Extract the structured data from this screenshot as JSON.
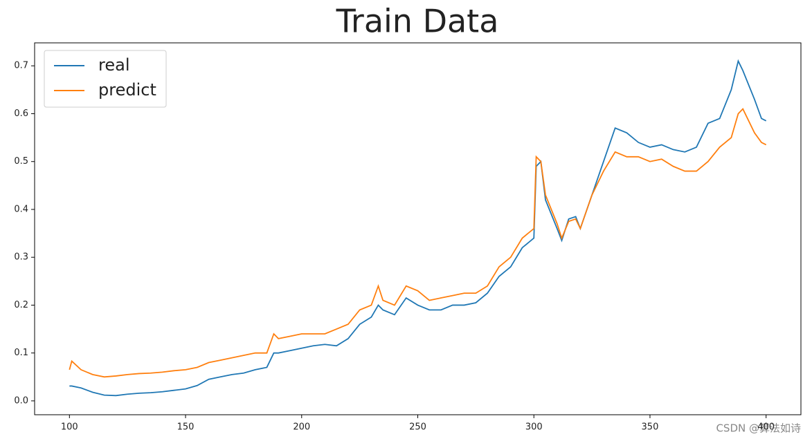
{
  "chart_data": {
    "type": "line",
    "title": "Train Data",
    "x": [
      100,
      101,
      105,
      110,
      115,
      120,
      125,
      130,
      135,
      140,
      145,
      150,
      155,
      160,
      165,
      170,
      175,
      180,
      185,
      188,
      190,
      195,
      200,
      205,
      210,
      215,
      220,
      225,
      230,
      233,
      235,
      240,
      245,
      250,
      255,
      260,
      265,
      270,
      275,
      280,
      285,
      290,
      295,
      300,
      301,
      303,
      305,
      310,
      312,
      315,
      318,
      320,
      325,
      330,
      335,
      340,
      345,
      350,
      355,
      360,
      365,
      370,
      375,
      380,
      385,
      388,
      390,
      395,
      398,
      400
    ],
    "series": [
      {
        "name": "real",
        "color": "#1f77b4",
        "values": [
          0.031,
          0.031,
          0.027,
          0.018,
          0.012,
          0.011,
          0.014,
          0.016,
          0.017,
          0.019,
          0.022,
          0.025,
          0.032,
          0.045,
          0.05,
          0.055,
          0.058,
          0.065,
          0.07,
          0.1,
          0.1,
          0.105,
          0.11,
          0.115,
          0.118,
          0.115,
          0.13,
          0.16,
          0.175,
          0.2,
          0.19,
          0.18,
          0.215,
          0.2,
          0.19,
          0.19,
          0.2,
          0.2,
          0.205,
          0.225,
          0.26,
          0.28,
          0.32,
          0.34,
          0.49,
          0.5,
          0.42,
          0.36,
          0.335,
          0.38,
          0.385,
          0.36,
          0.43,
          0.5,
          0.57,
          0.56,
          0.54,
          0.53,
          0.535,
          0.525,
          0.52,
          0.53,
          0.58,
          0.59,
          0.65,
          0.71,
          0.69,
          0.63,
          0.59,
          0.585
        ]
      },
      {
        "name": "predict",
        "color": "#ff7f0e",
        "values": [
          0.065,
          0.083,
          0.065,
          0.055,
          0.05,
          0.052,
          0.055,
          0.057,
          0.058,
          0.06,
          0.063,
          0.065,
          0.07,
          0.08,
          0.085,
          0.09,
          0.095,
          0.1,
          0.1,
          0.14,
          0.13,
          0.135,
          0.14,
          0.14,
          0.14,
          0.15,
          0.16,
          0.19,
          0.2,
          0.24,
          0.21,
          0.2,
          0.24,
          0.23,
          0.21,
          0.215,
          0.22,
          0.225,
          0.225,
          0.24,
          0.28,
          0.3,
          0.34,
          0.36,
          0.51,
          0.5,
          0.43,
          0.37,
          0.34,
          0.375,
          0.38,
          0.36,
          0.43,
          0.48,
          0.52,
          0.51,
          0.51,
          0.5,
          0.505,
          0.49,
          0.48,
          0.48,
          0.5,
          0.53,
          0.55,
          0.6,
          0.61,
          0.56,
          0.54,
          0.535
        ]
      }
    ],
    "xlim": [
      85,
      415
    ],
    "ylim": [
      -0.029,
      0.748
    ],
    "xticks": [
      100,
      150,
      200,
      250,
      300,
      350,
      400
    ],
    "yticks": [
      {
        "value": 0,
        "label": "0.0"
      },
      0.1,
      0.2,
      0.3,
      0.4,
      0.5,
      0.6,
      0.7
    ],
    "legend": "upper left",
    "watermark": "CSDN @算法如诗"
  }
}
